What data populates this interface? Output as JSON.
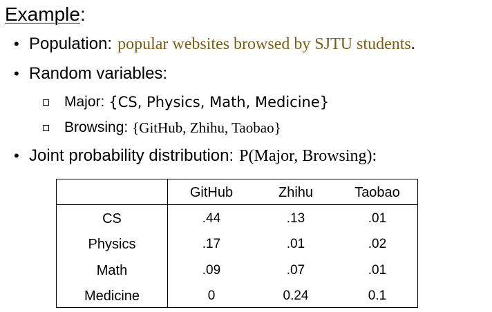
{
  "title": {
    "word": "Example",
    "colon": ":"
  },
  "bullets": {
    "population": {
      "label": "Population:",
      "value": "popular websites browsed by SJTU students",
      "end": "."
    },
    "random_variables": {
      "label": "Random variables:"
    },
    "joint": {
      "label": "Joint probability distribution:",
      "expression": "P(Major, Browsing)",
      "end": ":"
    }
  },
  "sub_bullets": {
    "major": {
      "label": "Major:",
      "values": "{CS, Physics, Math, Medicine}"
    },
    "browsing": {
      "label": "Browsing:",
      "values": "{GitHub, Zhihu, Taobao}"
    }
  },
  "table": {
    "columns": [
      "GitHub",
      "Zhihu",
      "Taobao"
    ],
    "rows": [
      {
        "label": "CS",
        "values": [
          ".44",
          ".13",
          ".01"
        ]
      },
      {
        "label": "Physics",
        "values": [
          ".17",
          ".01",
          ".02"
        ]
      },
      {
        "label": "Math",
        "values": [
          ".09",
          ".07",
          ".01"
        ]
      },
      {
        "label": "Medicine",
        "values": [
          "0",
          "0.24",
          "0.1"
        ]
      }
    ]
  },
  "colors": {
    "highlight": "#7a5d14",
    "text": "#000000"
  }
}
